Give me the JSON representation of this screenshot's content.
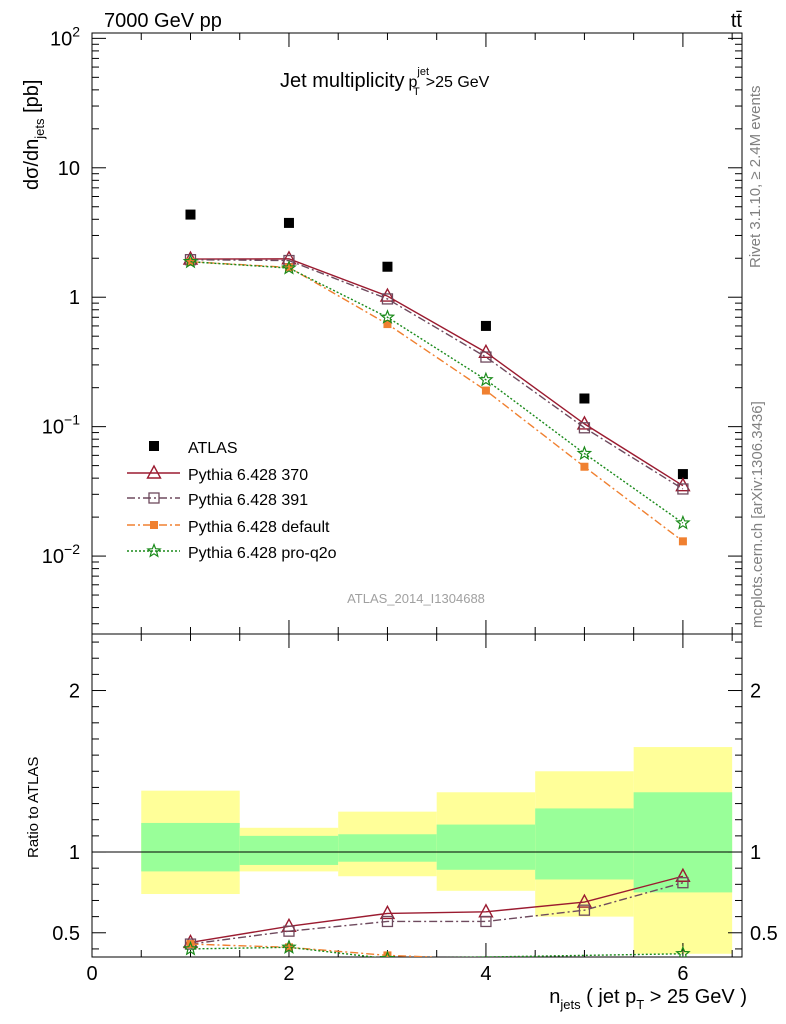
{
  "header": {
    "left": "7000 GeV pp",
    "right": "tt̄"
  },
  "side": {
    "rivet": "Rivet 3.1.10, ≥ 2.4M events",
    "url": "mcplots.cern.ch [arXiv:1306.3436]"
  },
  "watermark": "ATLAS_2014_I1304688",
  "colors": {
    "atlas": "#000000",
    "p370": "#9b1b30",
    "p391": "#6e4a5e",
    "default": "#f08030",
    "proq2o": "#1a8a1a",
    "band_inner": "#99ff99",
    "band_outer": "#ffff99"
  },
  "chart_data": [
    {
      "type": "scatter",
      "title": "Jet multiplicity",
      "title_suffix": {
        "p": "p",
        "sup": "jet",
        "sub": "T",
        "cut": ">25 GeV"
      },
      "ylabel": {
        "main": "dσ/dn",
        "sub": "jets",
        "unit": " [pb]"
      },
      "yscale": "log",
      "ylim": [
        0.0025,
        110
      ],
      "xlim": [
        0,
        6.6
      ],
      "yticks": [
        {
          "v": 100,
          "base": "10",
          "exp": "2"
        },
        {
          "v": 10,
          "base": "10",
          "exp": ""
        },
        {
          "v": 1,
          "base": "1",
          "exp": ""
        },
        {
          "v": 0.1,
          "base": "10",
          "exp": "−1"
        },
        {
          "v": 0.01,
          "base": "10",
          "exp": "−2"
        }
      ],
      "series": [
        {
          "name": "ATLAS",
          "x": [
            1,
            2,
            3,
            4,
            5,
            6
          ],
          "y": [
            4.35,
            3.75,
            1.72,
            0.6,
            0.165,
            0.043
          ]
        },
        {
          "name": "Pythia 6.428 370",
          "x": [
            1,
            2,
            3,
            4,
            5,
            6
          ],
          "y": [
            1.97,
            1.98,
            1.02,
            0.375,
            0.105,
            0.035
          ]
        },
        {
          "name": "Pythia 6.428 391",
          "x": [
            1,
            2,
            3,
            4,
            5,
            6
          ],
          "y": [
            1.95,
            1.92,
            0.97,
            0.345,
            0.098,
            0.033
          ]
        },
        {
          "name": "Pythia 6.428 default",
          "x": [
            1,
            2,
            3,
            4,
            5,
            6
          ],
          "y": [
            1.88,
            1.7,
            0.62,
            0.19,
            0.049,
            0.013
          ]
        },
        {
          "name": "Pythia 6.428 pro-q2o",
          "x": [
            1,
            2,
            3,
            4,
            5,
            6
          ],
          "y": [
            1.88,
            1.68,
            0.7,
            0.23,
            0.062,
            0.018
          ]
        }
      ]
    },
    {
      "type": "scatter",
      "ylabel": "Ratio to ATLAS",
      "xlabel": {
        "n": "n",
        "nsub": "jets",
        "mid": " ( jet p",
        "psub": "T",
        "end": " > 25 GeV )"
      },
      "ylim": [
        0.35,
        2.35
      ],
      "xlim": [
        0,
        6.6
      ],
      "xticks": [
        "0",
        "2",
        "4",
        "6"
      ],
      "yticks": [
        "0.5",
        "1",
        "2"
      ],
      "bands": [
        {
          "x0": 0.5,
          "x1": 1.5,
          "inner": [
            0.88,
            1.18
          ],
          "outer": [
            0.74,
            1.38
          ]
        },
        {
          "x0": 1.5,
          "x1": 2.5,
          "inner": [
            0.92,
            1.1
          ],
          "outer": [
            0.88,
            1.15
          ]
        },
        {
          "x0": 2.5,
          "x1": 3.5,
          "inner": [
            0.94,
            1.11
          ],
          "outer": [
            0.85,
            1.25
          ]
        },
        {
          "x0": 3.5,
          "x1": 4.5,
          "inner": [
            0.89,
            1.17
          ],
          "outer": [
            0.76,
            1.37
          ]
        },
        {
          "x0": 4.5,
          "x1": 5.5,
          "inner": [
            0.83,
            1.27
          ],
          "outer": [
            0.6,
            1.5
          ]
        },
        {
          "x0": 5.5,
          "x1": 6.5,
          "inner": [
            0.75,
            1.37
          ],
          "outer": [
            0.37,
            1.65
          ]
        }
      ],
      "series": [
        {
          "name": "Pythia 6.428 370",
          "x": [
            1,
            2,
            3,
            4,
            5,
            6
          ],
          "y": [
            0.44,
            0.54,
            0.62,
            0.63,
            0.69,
            0.85
          ]
        },
        {
          "name": "Pythia 6.428 391",
          "x": [
            1,
            2,
            3,
            4,
            5,
            6
          ],
          "y": [
            0.43,
            0.51,
            0.57,
            0.57,
            0.64,
            0.81
          ]
        },
        {
          "name": "Pythia 6.428 default",
          "x": [
            1,
            2,
            3,
            3.45
          ],
          "y": [
            0.43,
            0.41,
            0.36,
            0.35
          ]
        },
        {
          "name": "Pythia 6.428 pro-q2o",
          "x": [
            1,
            2,
            3,
            6
          ],
          "y": [
            0.4,
            0.41,
            0.34,
            0.37
          ]
        }
      ]
    }
  ]
}
